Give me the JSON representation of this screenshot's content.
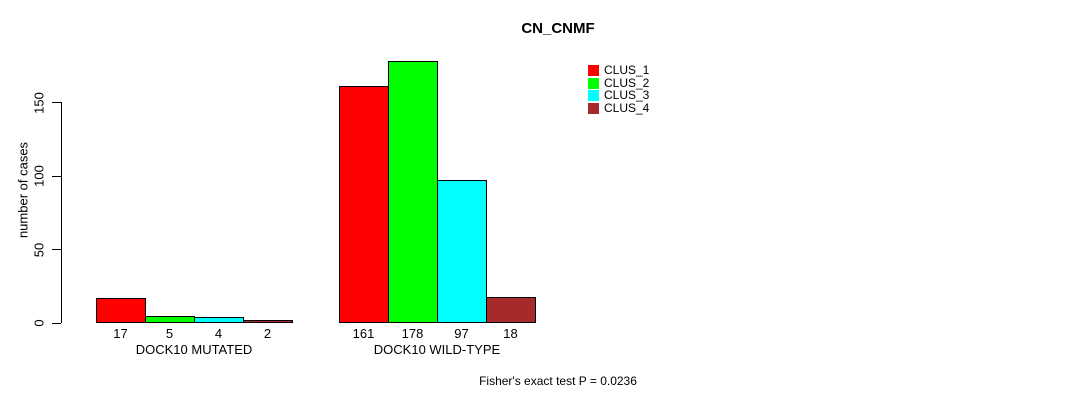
{
  "chart_data": {
    "type": "bar",
    "title": "CN_CNMF",
    "ylabel": "number of cases",
    "xlabel": "",
    "footer": "Fisher's exact test P = 0.0236",
    "categories": [
      "DOCK10 MUTATED",
      "DOCK10 WILD-TYPE"
    ],
    "series": [
      {
        "name": "CLUS_1",
        "color": "#FF0000",
        "values": [
          17,
          161
        ]
      },
      {
        "name": "CLUS_2",
        "color": "#00FF00",
        "values": [
          5,
          178
        ]
      },
      {
        "name": "CLUS_3",
        "color": "#00FFFF",
        "values": [
          4,
          97
        ]
      },
      {
        "name": "CLUS_4",
        "color": "#A52A2A",
        "values": [
          2,
          18
        ]
      }
    ],
    "value_labels": [
      [
        "17",
        "5",
        "4",
        "2"
      ],
      [
        "161",
        "178",
        "97",
        "18"
      ]
    ],
    "yticks": [
      0,
      50,
      100,
      150
    ],
    "ylim": [
      0,
      178
    ],
    "grid": false,
    "legend_position": "top-right",
    "bar_border_color": "#000000",
    "background_color": "#FFFFFF"
  }
}
